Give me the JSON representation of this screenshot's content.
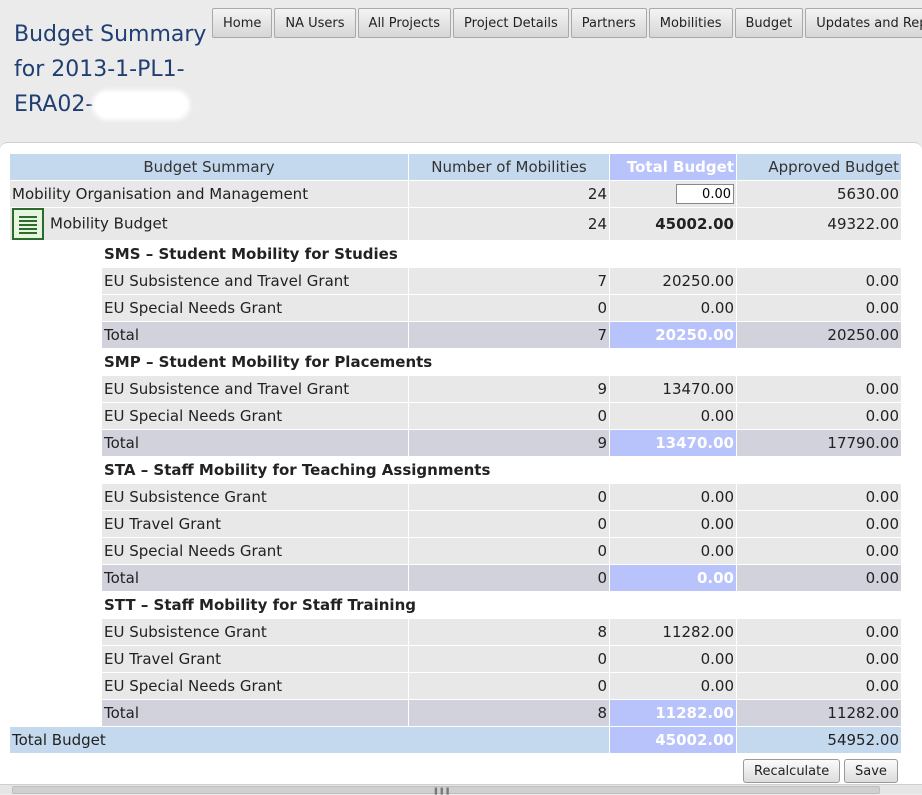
{
  "page_title": "Budget Summary for 2013-1-PL1-ERA02-",
  "nav_tabs": [
    "Home",
    "NA Users",
    "All Projects",
    "Project Details",
    "Partners",
    "Mobilities",
    "Budget",
    "Updates and Reports"
  ],
  "table": {
    "headers": {
      "summary": "Budget Summary",
      "mobilities": "Number of Mobilities",
      "total_budget": "Total Budget",
      "approved_budget": "Approved Budget"
    },
    "mobility_org": {
      "label": "Mobility Organisation and Management",
      "mobilities": "24",
      "total_budget_input": "0.00",
      "approved": "5630.00"
    },
    "mobility_budget": {
      "label": "Mobility Budget",
      "mobilities": "24",
      "total": "45002.00",
      "approved": "49322.00",
      "icon": "spreadsheet-icon"
    },
    "sections": [
      {
        "title": "SMS – Student Mobility for Studies",
        "items": [
          {
            "label": "EU Subsistence and Travel Grant",
            "mobilities": "7",
            "total": "20250.00",
            "approved": "0.00"
          },
          {
            "label": "EU Special Needs Grant",
            "mobilities": "0",
            "total": "0.00",
            "approved": "0.00"
          }
        ],
        "total": {
          "label": "Total",
          "mobilities": "7",
          "total": "20250.00",
          "approved": "20250.00"
        }
      },
      {
        "title": "SMP – Student Mobility for Placements",
        "items": [
          {
            "label": "EU Subsistence and Travel Grant",
            "mobilities": "9",
            "total": "13470.00",
            "approved": "0.00"
          },
          {
            "label": "EU Special Needs Grant",
            "mobilities": "0",
            "total": "0.00",
            "approved": "0.00"
          }
        ],
        "total": {
          "label": "Total",
          "mobilities": "9",
          "total": "13470.00",
          "approved": "17790.00"
        }
      },
      {
        "title": "STA – Staff Mobility for Teaching Assignments",
        "items": [
          {
            "label": "EU Subsistence Grant",
            "mobilities": "0",
            "total": "0.00",
            "approved": "0.00"
          },
          {
            "label": "EU Travel Grant",
            "mobilities": "0",
            "total": "0.00",
            "approved": "0.00"
          },
          {
            "label": "EU Special Needs Grant",
            "mobilities": "0",
            "total": "0.00",
            "approved": "0.00"
          }
        ],
        "total": {
          "label": "Total",
          "mobilities": "0",
          "total": "0.00",
          "approved": "0.00"
        }
      },
      {
        "title": "STT – Staff Mobility for Staff Training",
        "items": [
          {
            "label": "EU Subsistence Grant",
            "mobilities": "8",
            "total": "11282.00",
            "approved": "0.00"
          },
          {
            "label": "EU Travel Grant",
            "mobilities": "0",
            "total": "0.00",
            "approved": "0.00"
          },
          {
            "label": "EU Special Needs Grant",
            "mobilities": "0",
            "total": "0.00",
            "approved": "0.00"
          }
        ],
        "total": {
          "label": "Total",
          "mobilities": "8",
          "total": "11282.00",
          "approved": "11282.00"
        }
      }
    ],
    "grand_total": {
      "label": "Total Budget",
      "total": "45002.00",
      "approved": "54952.00"
    }
  },
  "buttons": {
    "recalculate": "Recalculate",
    "save": "Save"
  },
  "colors": {
    "header_blue": "#c5d9ee",
    "total_budget_purple": "#b8c2fb",
    "title_navy": "#1f3f73",
    "row_gray": "#e8e8e8",
    "total_row_gray": "#d2d2dc"
  }
}
